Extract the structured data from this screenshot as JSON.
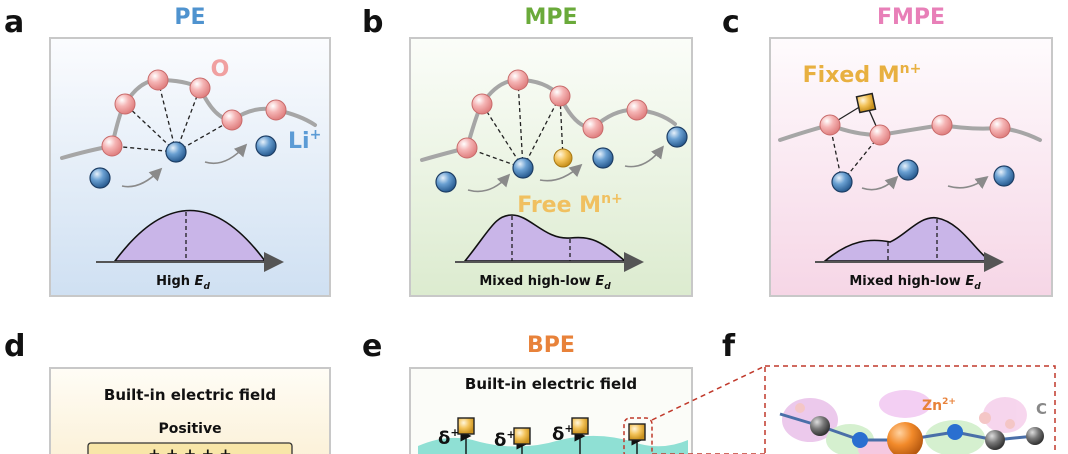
{
  "panels": [
    {
      "letter": "a",
      "title": "PE",
      "atom_label": "O",
      "ion_label": {
        "text": "Li",
        "sup": "+"
      },
      "axis_label": {
        "text": "High ",
        "var": "E",
        "sub": "d"
      }
    },
    {
      "letter": "b",
      "title": "MPE",
      "ion_label": {
        "text": "Free M",
        "sup": "n+"
      },
      "axis_label": {
        "text": "Mixed high-low ",
        "var": "E",
        "sub": "d"
      }
    },
    {
      "letter": "c",
      "title": "FMPE",
      "ion_label": {
        "text": "Fixed M",
        "sup": "n+"
      },
      "axis_label": {
        "text": "Mixed high-low ",
        "var": "E",
        "sub": "d"
      }
    },
    {
      "letter": "d",
      "field_label": "Built-in electric field",
      "plate_label": "Positive",
      "charges": "+ + + + +"
    },
    {
      "letter": "e",
      "title": "BPE",
      "field_label": "Built-in electric field",
      "dipole_labels": [
        {
          "text": "δ",
          "sup": "+"
        },
        {
          "text": "δ",
          "sup": "+"
        },
        {
          "text": "δ",
          "sup": "+"
        }
      ]
    },
    {
      "letter": "f",
      "labels": [
        {
          "text": "Zn",
          "sup": "2+"
        },
        {
          "text": "C"
        }
      ]
    }
  ]
}
